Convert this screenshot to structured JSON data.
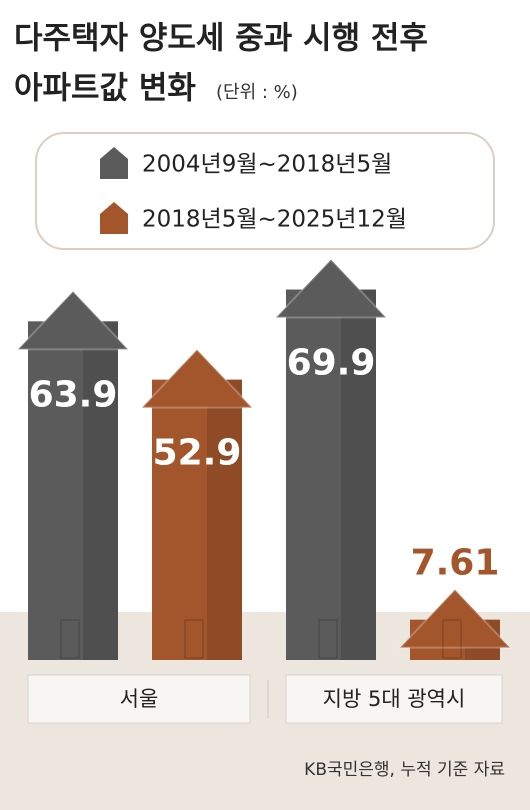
{
  "chart_data": {
    "type": "bar",
    "title": [
      "다주택자 양도세 중과 시행 전후",
      "아파트값 변화"
    ],
    "unit": "(단위 : %)",
    "categories": [
      "서울",
      "지방 5대 광역시"
    ],
    "series": [
      {
        "name": "2004년9월~2018년5월",
        "color": "#5b5b5b",
        "values": [
          63.9,
          69.9
        ]
      },
      {
        "name": "2018년5월~2025년12월",
        "color": "#a3562b",
        "values": [
          52.9,
          7.61
        ]
      }
    ],
    "source": "KB국민은행, 누적 기준 자료"
  }
}
